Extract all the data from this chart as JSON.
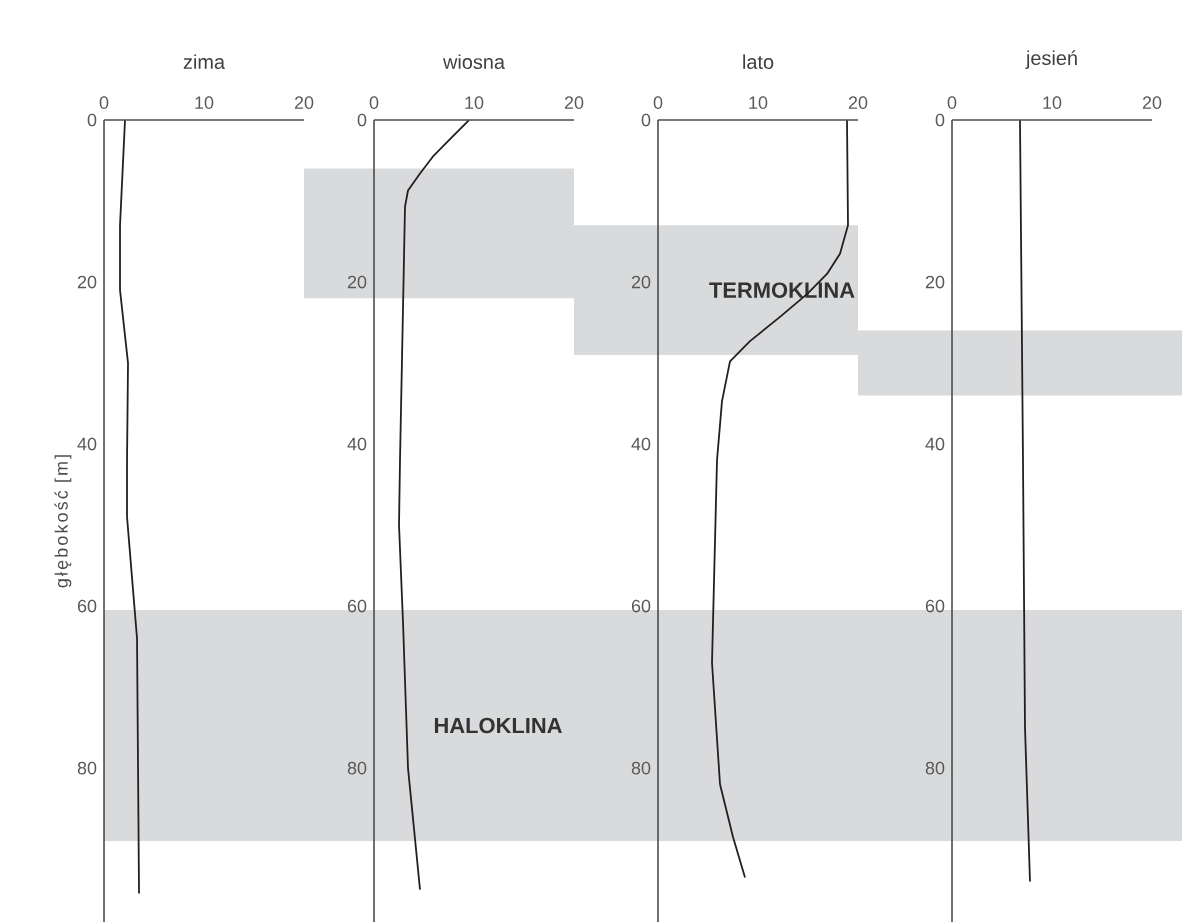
{
  "chart_data": [
    {
      "type": "line",
      "title": "zima",
      "ylabel": "głębokość [m]",
      "xlim": [
        0,
        20
      ],
      "ylim": [
        99,
        0
      ],
      "xticks": [
        0,
        10,
        20
      ],
      "yticks": [
        0,
        20,
        40,
        60,
        80
      ],
      "series": [
        {
          "color": "#231f20",
          "x": [
            2.1,
            1.6,
            1.6,
            2.4,
            2.3,
            2.3,
            3.3,
            3.5
          ],
          "values": [
            0,
            13,
            21,
            30,
            42,
            49,
            64,
            95.5
          ]
        }
      ],
      "bands": [
        {
          "axis": "y",
          "from": 60.5,
          "to": 89,
          "color": "#d9dadb"
        }
      ]
    },
    {
      "type": "line",
      "title": "wiosna",
      "xlim": [
        0,
        20
      ],
      "ylim": [
        99,
        0
      ],
      "xticks": [
        0,
        10,
        20
      ],
      "yticks": [
        0,
        20,
        40,
        60,
        80
      ],
      "series": [
        {
          "color": "#231f20",
          "x": [
            9.5,
            7.9,
            5.9,
            4.6,
            3.4,
            3.1,
            2.6,
            2.5,
            2.9,
            3.4,
            4.6
          ],
          "values": [
            0,
            2,
            4.5,
            6.6,
            8.7,
            10.7,
            42,
            50,
            62,
            80,
            95
          ]
        }
      ],
      "bands": [
        {
          "axis": "y",
          "from": 6,
          "to": 22,
          "color": "#d9dadb"
        },
        {
          "axis": "y",
          "from": 60.5,
          "to": 89,
          "label": "HALOKLINA",
          "color": "#d9dadb"
        }
      ]
    },
    {
      "type": "line",
      "title": "lato",
      "xlim": [
        0,
        20
      ],
      "ylim": [
        99,
        0
      ],
      "xticks": [
        0,
        10,
        20
      ],
      "yticks": [
        0,
        20,
        40,
        60,
        80
      ],
      "series": [
        {
          "color": "#231f20",
          "x": [
            18.9,
            19,
            18.2,
            16.9,
            14.9,
            12.2,
            9.2,
            7.2,
            6.4,
            5.9,
            5.4,
            6.2,
            7.5,
            8.7
          ],
          "values": [
            0,
            13,
            16.5,
            19,
            21.5,
            24.3,
            27.3,
            29.8,
            34.7,
            42,
            67,
            82,
            88.5,
            93.5
          ]
        }
      ],
      "bands": [
        {
          "axis": "y",
          "from": 13,
          "to": 29,
          "label": "TERMOKLINA",
          "color": "#d9dadb"
        },
        {
          "axis": "y",
          "from": 60.5,
          "to": 89,
          "color": "#d9dadb"
        }
      ]
    },
    {
      "type": "line",
      "title": "jesień",
      "xlim": [
        0,
        20
      ],
      "ylim": [
        99,
        0
      ],
      "xticks": [
        0,
        10,
        20
      ],
      "yticks": [
        0,
        20,
        40,
        60,
        80
      ],
      "series": [
        {
          "color": "#231f20",
          "x": [
            6.8,
            7.1,
            7.3,
            7.8
          ],
          "values": [
            0,
            42,
            75,
            94
          ]
        }
      ],
      "bands": [
        {
          "axis": "y",
          "from": 26,
          "to": 34,
          "color": "#d9dadb"
        },
        {
          "axis": "y",
          "from": 60.5,
          "to": 89,
          "color": "#d9dadb"
        }
      ]
    }
  ]
}
